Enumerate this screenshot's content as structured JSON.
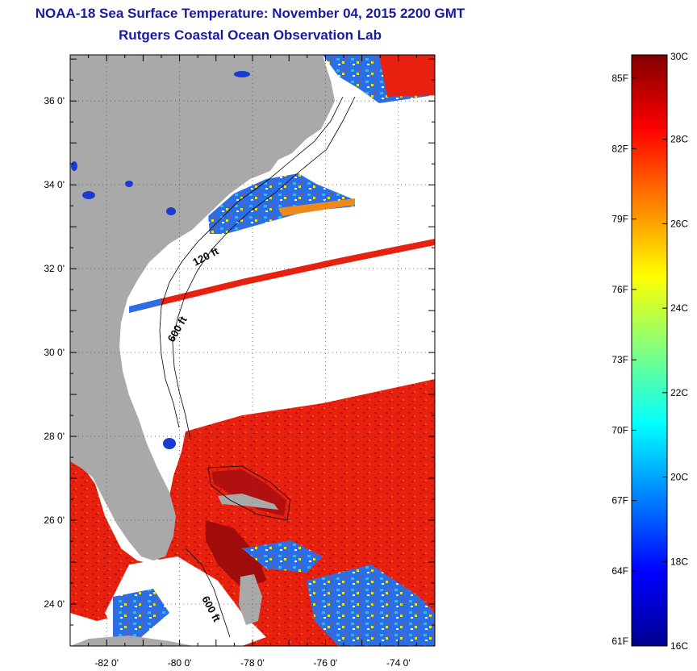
{
  "title": "NOAA-18 Sea Surface Temperature:  November 04, 2015 2200 GMT",
  "subtitle": "Rutgers Coastal Ocean Observation Lab",
  "map": {
    "lat_labels": [
      "36 0'",
      "34 0'",
      "32 0'",
      "30 0'",
      "28 0'",
      "26 0'",
      "24 0'"
    ],
    "lat_values": [
      36,
      34,
      32,
      30,
      28,
      26,
      24
    ],
    "lon_labels": [
      "-82 0'",
      "-80 0'",
      "-78 0'",
      "-76 0'",
      "-74 0'"
    ],
    "lon_values": [
      -82,
      -80,
      -78,
      -76,
      -74
    ],
    "lat_range": [
      23,
      37.1
    ],
    "lon_range": [
      -83,
      -73
    ],
    "grid": "dotted",
    "contour_labels": [
      "120 ft",
      "600 ft",
      "600 ft"
    ],
    "colors": {
      "land": "#a9a9a9",
      "cloud": "#ffffff",
      "sst_warm": "#e8200f",
      "sst_cool": "#2a6fe8"
    }
  },
  "colorbar": {
    "c_labels": [
      "30C",
      "28C",
      "26C",
      "24C",
      "22C",
      "20C",
      "18C",
      "16C"
    ],
    "c_values": [
      30,
      28,
      26,
      24,
      22,
      20,
      18,
      16
    ],
    "f_labels": [
      "85F",
      "82F",
      "79F",
      "76F",
      "73F",
      "70F",
      "67F",
      "64F",
      "61F"
    ],
    "f_values": [
      85,
      82,
      79,
      76,
      73,
      70,
      67,
      64,
      61
    ],
    "range_c": [
      16,
      30
    ],
    "colormap": "jet"
  }
}
